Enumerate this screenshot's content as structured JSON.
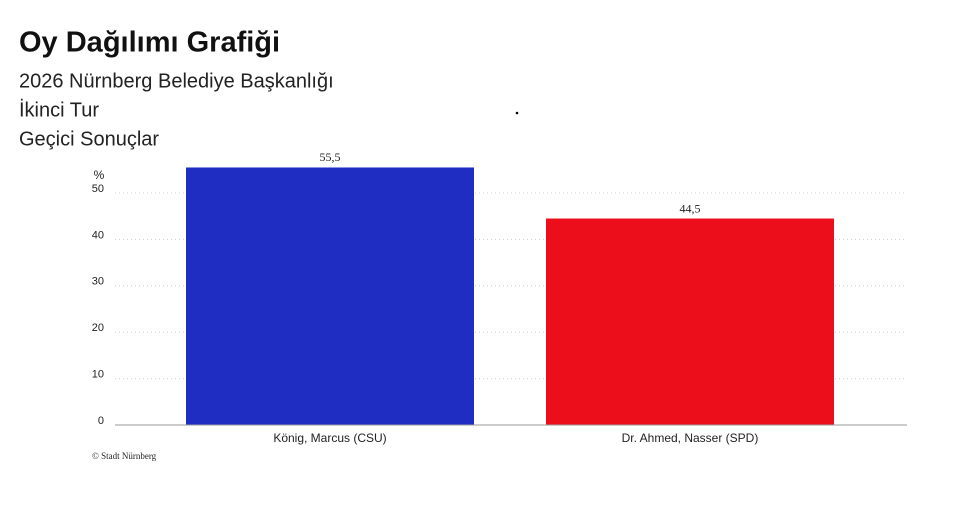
{
  "chart_data": {
    "type": "bar",
    "title": "Oy Dağılımı Grafiği",
    "subtitle": [
      "2026 Nürnberg Belediye Başkanlığı",
      "İkinci Tur",
      "Geçici Sonuçlar"
    ],
    "y_label": "%",
    "categories": [
      "König, Marcus (CSU)",
      "Dr. Ahmed, Nasser (SPD)"
    ],
    "values": [
      55.5,
      44.5
    ],
    "value_labels": [
      "55,5",
      "44,5"
    ],
    "colors": [
      "#202dc2",
      "#ed0e1c"
    ],
    "ylim": [
      0,
      60
    ],
    "yticks": [
      0,
      10,
      20,
      30,
      40,
      50
    ],
    "grid": true,
    "source": "© Stadt Nürnberg"
  }
}
